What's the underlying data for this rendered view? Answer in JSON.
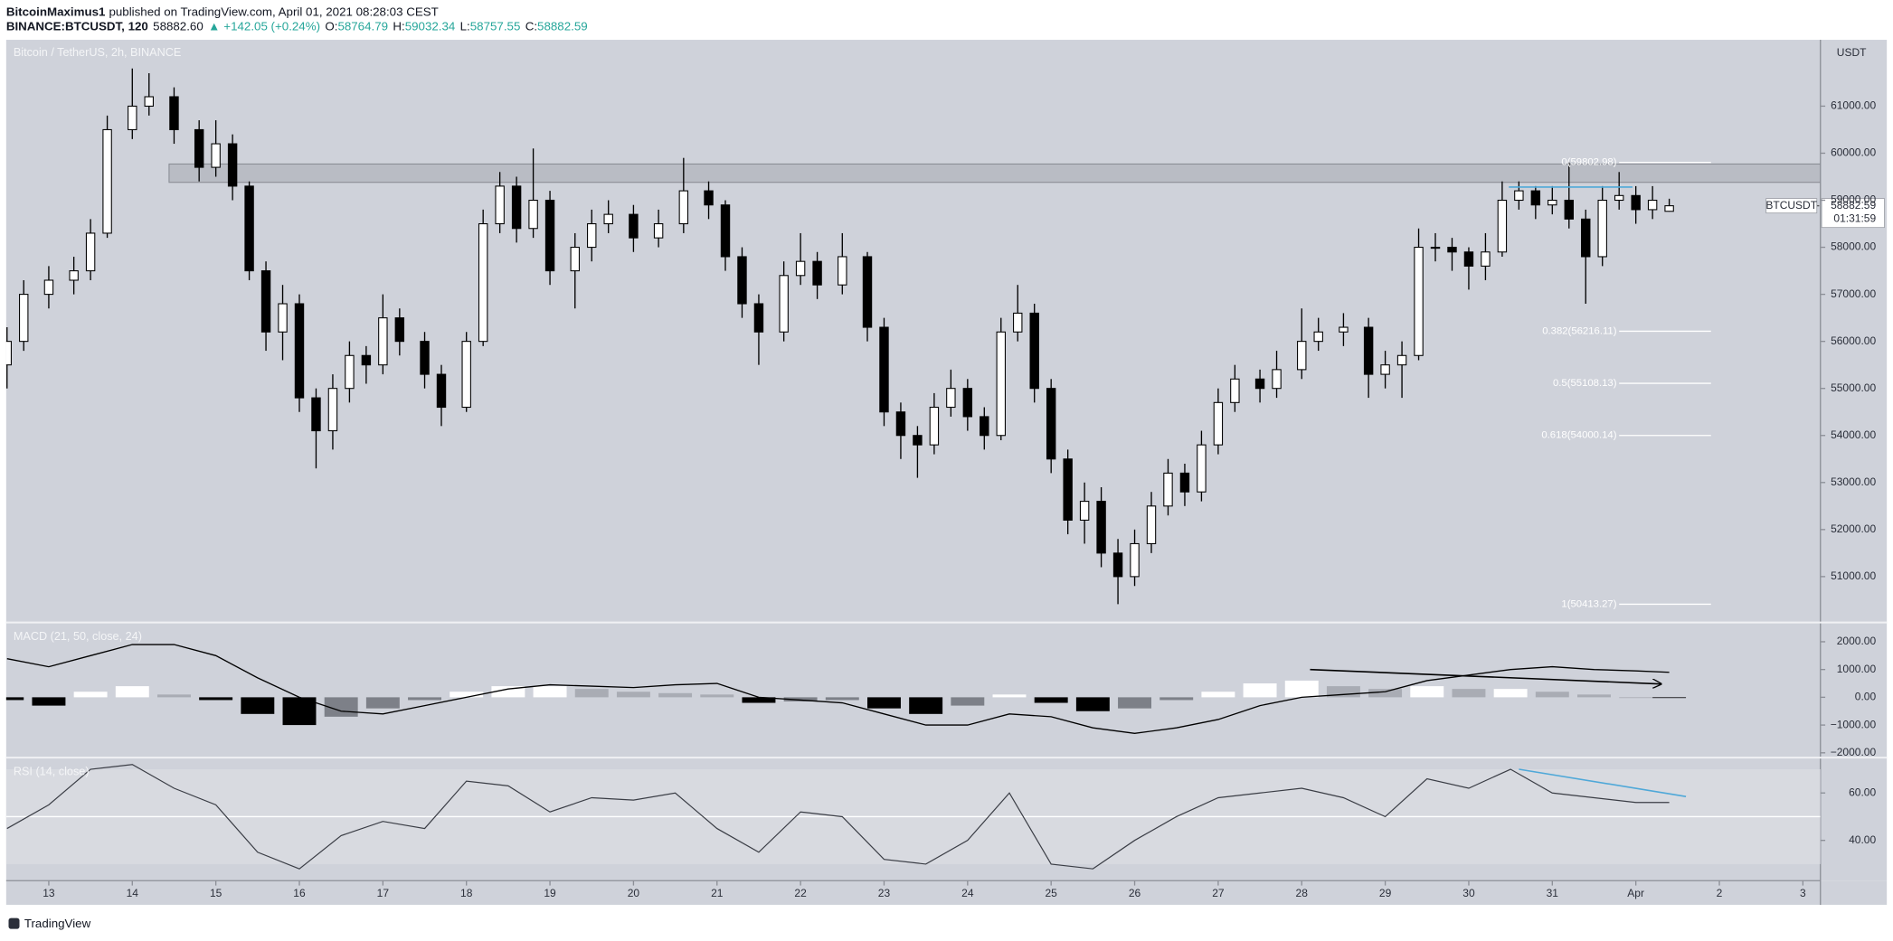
{
  "header": {
    "author": "BitcoinMaximus1",
    "published": "published on TradingView.com, April 01, 2021 08:28:03 CEST",
    "symbol": "BINANCE:BTCUSDT, 120",
    "price": "58882.60",
    "arrow": "▲",
    "change": "+142.05 (+0.24%)",
    "ohlc": [
      {
        "label": "O:",
        "value": "58764.79"
      },
      {
        "label": "H:",
        "value": "59032.34"
      },
      {
        "label": "L:",
        "value": "58757.55"
      },
      {
        "label": "C:",
        "value": "58882.59"
      }
    ]
  },
  "footer": "TradingView",
  "chart_data": [
    {
      "type": "candlestick",
      "title": "Bitcoin / TetherUS, 2h, BINANCE",
      "y_unit": "USDT",
      "x": [
        12.5,
        12.7,
        13.0,
        13.3,
        13.5,
        13.7,
        14.0,
        14.2,
        14.5,
        14.8,
        15.0,
        15.2,
        15.4,
        15.6,
        15.8,
        16.0,
        16.2,
        16.4,
        16.6,
        16.8,
        17.0,
        17.2,
        17.5,
        17.7,
        18.0,
        18.2,
        18.4,
        18.6,
        18.8,
        19.0,
        19.3,
        19.5,
        19.7,
        20.0,
        20.3,
        20.6,
        20.9,
        21.1,
        21.3,
        21.5,
        21.8,
        22.0,
        22.2,
        22.5,
        22.8,
        23.0,
        23.2,
        23.4,
        23.6,
        23.8,
        24.0,
        24.2,
        24.4,
        24.6,
        24.8,
        25.0,
        25.2,
        25.4,
        25.6,
        25.8,
        26.0,
        26.2,
        26.4,
        26.6,
        26.8,
        27.0,
        27.2,
        27.5,
        27.7,
        28.0,
        28.2,
        28.5,
        28.8,
        29.0,
        29.2,
        29.4,
        29.6,
        29.8,
        30.0,
        30.2,
        30.4,
        30.6,
        30.8,
        31.0,
        31.2,
        31.4,
        31.6,
        31.8,
        32.0,
        32.2,
        32.4
      ],
      "open": [
        55500,
        56000,
        57000,
        57300,
        57500,
        58300,
        60500,
        61000,
        61200,
        60500,
        59700,
        60200,
        59300,
        57500,
        56200,
        56800,
        54800,
        54100,
        55000,
        55700,
        55500,
        56500,
        56000,
        55300,
        54600,
        56000,
        58500,
        59300,
        58400,
        59000,
        57500,
        58000,
        58500,
        58700,
        58200,
        58500,
        59200,
        58900,
        57800,
        56800,
        56200,
        57400,
        57700,
        57200,
        57800,
        56300,
        54500,
        54000,
        53800,
        54600,
        55000,
        54400,
        54000,
        56200,
        56600,
        55000,
        53500,
        52200,
        52600,
        51500,
        51000,
        51700,
        52500,
        53200,
        52800,
        53800,
        54700,
        55200,
        55000,
        55400,
        56000,
        56200,
        56300,
        55300,
        55500,
        55700,
        58000,
        58000,
        57900,
        57600,
        57900,
        59000,
        59200,
        58900,
        59000,
        58600,
        57800,
        59000,
        59100,
        58800,
        58764.79
      ],
      "high": [
        56300,
        57300,
        57600,
        57800,
        58600,
        60800,
        61800,
        61700,
        61400,
        60700,
        60700,
        60400,
        59400,
        57700,
        57200,
        57000,
        55000,
        55300,
        56000,
        55900,
        57000,
        56700,
        56200,
        55500,
        56200,
        58800,
        59600,
        59500,
        60100,
        59200,
        58300,
        58800,
        59000,
        58900,
        58800,
        59900,
        59400,
        59000,
        58000,
        57000,
        57700,
        58300,
        57900,
        58300,
        57900,
        56500,
        54700,
        54200,
        54900,
        55400,
        55200,
        54600,
        56500,
        57200,
        56800,
        55200,
        53700,
        53000,
        52900,
        51800,
        52000,
        52800,
        53500,
        53400,
        54100,
        55000,
        55500,
        55400,
        55800,
        56700,
        56500,
        56600,
        56500,
        55800,
        56000,
        58400,
        58300,
        58200,
        58000,
        58300,
        59400,
        59400,
        59300,
        59300,
        59802.98,
        58800,
        59300,
        59600,
        59300,
        59300,
        59032.34
      ],
      "low": [
        55000,
        55800,
        56700,
        57000,
        57300,
        58200,
        60300,
        60800,
        60200,
        59400,
        59500,
        59000,
        57300,
        55800,
        55600,
        54500,
        53300,
        53700,
        54700,
        55100,
        55300,
        55700,
        55000,
        54200,
        54500,
        55900,
        58300,
        58100,
        58200,
        57200,
        56700,
        57700,
        58300,
        57900,
        58000,
        58300,
        58600,
        57500,
        56500,
        55500,
        56000,
        57200,
        56900,
        57000,
        56000,
        54200,
        53500,
        53100,
        53600,
        54400,
        54100,
        53700,
        53900,
        56000,
        54700,
        53200,
        51900,
        51700,
        51200,
        50413.27,
        50800,
        51500,
        52300,
        52500,
        52600,
        53600,
        54500,
        54700,
        54800,
        55200,
        55800,
        55900,
        54800,
        55000,
        54800,
        55600,
        57700,
        57500,
        57100,
        57300,
        57800,
        58800,
        58600,
        58700,
        58400,
        56800,
        57600,
        58800,
        58500,
        58600,
        58757.55
      ],
      "close": [
        56000,
        57000,
        57300,
        57500,
        58300,
        60500,
        61000,
        61200,
        60500,
        59700,
        60200,
        59300,
        57500,
        56200,
        56800,
        54800,
        54100,
        55000,
        55700,
        55500,
        56500,
        56000,
        55300,
        54600,
        56000,
        58500,
        59300,
        58400,
        59000,
        57500,
        58000,
        58500,
        58700,
        58200,
        58500,
        59200,
        58900,
        57800,
        56800,
        56200,
        57400,
        57700,
        57200,
        57800,
        56300,
        54500,
        54000,
        53800,
        54600,
        55000,
        54400,
        54000,
        56200,
        56600,
        55000,
        53500,
        52200,
        52600,
        51500,
        51000,
        51700,
        52500,
        53200,
        52800,
        53800,
        54700,
        55200,
        55000,
        55400,
        56000,
        56200,
        56300,
        55300,
        55500,
        55700,
        58000,
        58000,
        57900,
        57600,
        57900,
        59000,
        59200,
        58900,
        59000,
        58600,
        57800,
        59000,
        59100,
        58800,
        59000,
        58882.59
      ],
      "colors": {
        "up": "#ffffff",
        "down": "#000000",
        "outline": "#000000"
      },
      "xlim": [
        12.49,
        34.21
      ],
      "xticks": [
        13,
        14,
        15,
        16,
        17,
        18,
        19,
        20,
        21,
        22,
        23,
        24,
        25,
        26,
        27,
        28,
        29,
        30,
        31,
        {
          "value": 32,
          "label": "Apr"
        },
        {
          "value": 33,
          "label": "2"
        },
        {
          "value": 34,
          "label": "3"
        }
      ],
      "ylim": [
        50050,
        62410
      ],
      "yticks": [
        {
          "value": 51000,
          "label": "51000.00"
        },
        {
          "value": 52000,
          "label": "52000.00"
        },
        {
          "value": 53000,
          "label": "53000.00"
        },
        {
          "value": 54000,
          "label": "54000.00"
        },
        {
          "value": 55000,
          "label": "55000.00"
        },
        {
          "value": 56000,
          "label": "56000.00"
        },
        {
          "value": 57000,
          "label": "57000.00"
        },
        {
          "value": 58000,
          "label": "58000.00"
        },
        {
          "value": 59000,
          "label": "59000.00"
        },
        {
          "value": 60000,
          "label": "60000.00"
        },
        {
          "value": 61000,
          "label": "61000.00"
        }
      ],
      "zone": {
        "x": [
          14.44,
          34.21
        ],
        "y": [
          59380,
          59770
        ],
        "color": "#a7aab3"
      },
      "fib": {
        "x": [
          31.8,
          32.9
        ],
        "color": "#ffffff",
        "levels": [
          {
            "label": "0(59802.98)",
            "value": 59802.98
          },
          {
            "label": "0.382(56216.11)",
            "value": 56216.11
          },
          {
            "label": "0.5(55108.13)",
            "value": 55108.13
          },
          {
            "label": "0.618(54000.14)",
            "value": 54000.14
          },
          {
            "label": "1(50413.27)",
            "value": 50413.27
          }
        ]
      },
      "lines": [
        {
          "x": [
            30.48,
            31.96
          ],
          "y": [
            59280,
            59280
          ],
          "color": "#4fa8d8"
        }
      ],
      "last_price": {
        "symbol": "BTCUSDT",
        "value": 58882.59,
        "countdown": "01:31:59"
      }
    },
    {
      "type": "macd",
      "title": "MACD (21, 50, close, 24)",
      "x": [
        12.5,
        13,
        13.5,
        14,
        14.5,
        15,
        15.5,
        16,
        16.5,
        17,
        17.5,
        18,
        18.5,
        19,
        19.5,
        20,
        20.5,
        21,
        21.5,
        22,
        22.5,
        23,
        23.5,
        24,
        24.5,
        25,
        25.5,
        26,
        26.5,
        27,
        27.5,
        28,
        28.5,
        29,
        29.5,
        30,
        30.5,
        31,
        31.5,
        32,
        32.4
      ],
      "series": [
        {
          "name": "MACD",
          "color": "#000000",
          "values": [
            1390,
            1100,
            1500,
            1900,
            1900,
            1500,
            700,
            0,
            -500,
            -600,
            -300,
            0,
            300,
            450,
            400,
            350,
            450,
            500,
            0,
            -100,
            -200,
            -600,
            -1000,
            -1000,
            -600,
            -700,
            -1100,
            -1300,
            -1100,
            -800,
            -300,
            0,
            100,
            200,
            600,
            800,
            1000,
            1100,
            1000,
            950,
            900
          ]
        }
      ],
      "histogram": [
        -100,
        -300,
        200,
        400,
        100,
        -100,
        -600,
        -1000,
        -700,
        -400,
        -100,
        200,
        400,
        400,
        300,
        200,
        150,
        100,
        -200,
        -150,
        -100,
        -400,
        -600,
        -300,
        100,
        -200,
        -500,
        -400,
        -100,
        200,
        500,
        600,
        400,
        300,
        400,
        300,
        300,
        200,
        100,
        0,
        -20
      ],
      "histogram_colors": {
        "pos_rising": "#ffffff",
        "pos_falling": "#a9acb4",
        "neg_falling": "#000000",
        "neg_rising": "#7d8088"
      },
      "ylim": [
        -2130,
        2650
      ],
      "yticks": [
        {
          "value": -2000,
          "label": "−2000.00"
        },
        {
          "value": -1000,
          "label": "−1000.00"
        },
        {
          "value": 0,
          "label": "0.00"
        },
        {
          "value": 1000,
          "label": "1000.00"
        },
        {
          "value": 2000,
          "label": "2000.00"
        }
      ],
      "lines": [
        {
          "x": [
            28.1,
            32.3
          ],
          "y": [
            1000,
            480
          ],
          "color": "#000000",
          "arrow": true
        }
      ]
    },
    {
      "type": "rsi",
      "title": "RSI (14, close)",
      "x": [
        12.5,
        13,
        13.5,
        14,
        14.5,
        15,
        15.5,
        16,
        16.5,
        17,
        17.5,
        18,
        18.5,
        19,
        19.5,
        20,
        20.5,
        21,
        21.5,
        22,
        22.5,
        23,
        23.5,
        24,
        24.5,
        25,
        25.5,
        26,
        26.5,
        27,
        27.5,
        28,
        28.5,
        29,
        29.5,
        30,
        30.5,
        31,
        31.5,
        32,
        32.4
      ],
      "series": [
        {
          "name": "RSI",
          "color": "#3a3d45",
          "values": [
            45,
            55,
            70,
            72,
            62,
            55,
            35,
            28,
            42,
            48,
            45,
            65,
            63,
            52,
            58,
            57,
            60,
            45,
            35,
            52,
            50,
            32,
            30,
            40,
            60,
            30,
            28,
            40,
            50,
            58,
            60,
            62,
            58,
            50,
            66,
            62,
            70,
            60,
            58,
            56,
            56
          ]
        }
      ],
      "band": [
        30,
        70
      ],
      "band_color": "#d8dae0",
      "midline": 50,
      "ylim": [
        23,
        74.4
      ],
      "yticks": [
        {
          "value": 40,
          "label": "40.00"
        },
        {
          "value": 60,
          "label": "60.00"
        }
      ],
      "lines": [
        {
          "x": [
            30.6,
            32.6
          ],
          "y": [
            70,
            58.5
          ],
          "color": "#4fa8d8"
        }
      ]
    }
  ]
}
